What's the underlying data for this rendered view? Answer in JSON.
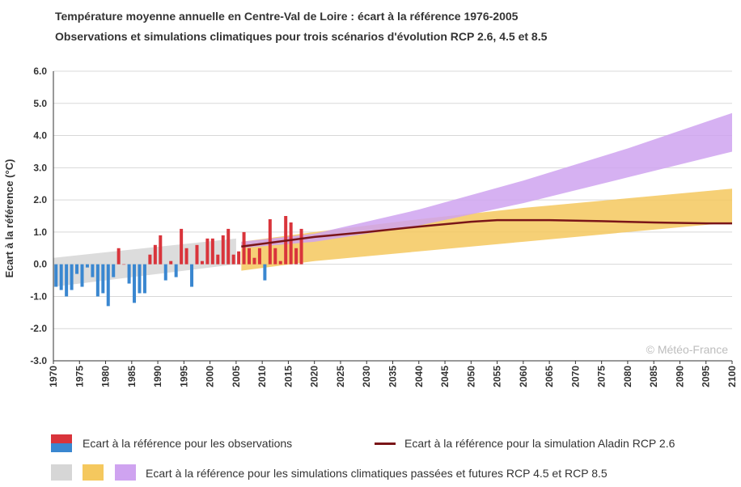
{
  "title": "Température moyenne annuelle en Centre-Val de Loire : écart à la référence 1976-2005",
  "subtitle": "Observations et simulations climatiques pour trois scénarios d'évolution RCP 2.6, 4.5 et 8.5",
  "watermark": "© Météo-France",
  "legend": {
    "observations": "Ecart à la référence pour les observations",
    "aladin": "Ecart à la référence pour la simulation Aladin RCP 2.6",
    "simulations": "Ecart à la référence pour les simulations climatiques passées et futures RCP 4.5 et RCP 8.5"
  },
  "colors": {
    "positive": "#d9343b",
    "negative": "#3a87d0",
    "grey_band": "#d6d6d6",
    "rcp45_band": "#f5c85e",
    "rcp85_band": "#cfa3f0",
    "aladin_line": "#7a1518",
    "grid": "#d8d8d8"
  },
  "chart_data": {
    "type": "bar",
    "ylabel": "Ecart à la référence (°C)",
    "xlabel": "",
    "xlim": [
      1970,
      2100
    ],
    "ylim": [
      -3.0,
      6.0
    ],
    "yticks": [
      "6.0",
      "5.0",
      "4.0",
      "3.0",
      "2.0",
      "1.0",
      "0.0",
      "-1.0",
      "-2.0",
      "-3.0"
    ],
    "ytick_values": [
      6,
      5,
      4,
      3,
      2,
      1,
      0,
      -1,
      -2,
      -3
    ],
    "xticks": [
      "1970",
      "1975",
      "1980",
      "1985",
      "1990",
      "1995",
      "2000",
      "2005",
      "2010",
      "2015",
      "2020",
      "2025",
      "2030",
      "2035",
      "2040",
      "2045",
      "2050",
      "2055",
      "2060",
      "2065",
      "2070",
      "2075",
      "2080",
      "2085",
      "2090",
      "2095",
      "2100"
    ],
    "observations": {
      "years": [
        1970,
        1971,
        1972,
        1973,
        1974,
        1975,
        1976,
        1977,
        1978,
        1979,
        1980,
        1981,
        1982,
        1983,
        1984,
        1985,
        1986,
        1987,
        1988,
        1989,
        1990,
        1991,
        1992,
        1993,
        1994,
        1995,
        1996,
        1997,
        1998,
        1999,
        2000,
        2001,
        2002,
        2003,
        2004,
        2005,
        2006,
        2007,
        2008,
        2009,
        2010,
        2011,
        2012,
        2013,
        2014,
        2015,
        2016,
        2017
      ],
      "values": [
        -0.7,
        -0.8,
        -1.0,
        -0.8,
        -0.3,
        -0.7,
        -0.1,
        -0.4,
        -1.0,
        -0.9,
        -1.3,
        -0.4,
        0.5,
        0.0,
        -0.6,
        -1.2,
        -0.9,
        -0.9,
        0.3,
        0.6,
        0.9,
        -0.5,
        0.1,
        -0.4,
        1.1,
        0.5,
        -0.7,
        0.6,
        0.1,
        0.8,
        0.8,
        0.3,
        0.9,
        1.1,
        0.3,
        0.4,
        1.0,
        0.5,
        0.2,
        0.5,
        -0.5,
        1.4,
        0.5,
        0.1,
        1.5,
        1.3,
        0.5,
        1.1
      ]
    },
    "bands": [
      {
        "name": "grey",
        "x": [
          1970,
          2005
        ],
        "lower": [
          -0.7,
          0.0
        ],
        "upper": [
          0.2,
          0.8
        ]
      },
      {
        "name": "rcp45",
        "x": [
          2006,
          2020,
          2040,
          2060,
          2080,
          2100
        ],
        "lower": [
          -0.2,
          0.1,
          0.4,
          0.7,
          1.0,
          1.3
        ],
        "upper": [
          0.7,
          1.0,
          1.4,
          1.75,
          2.05,
          2.35
        ]
      },
      {
        "name": "rcp85",
        "x": [
          2006,
          2020,
          2040,
          2060,
          2080,
          2100
        ],
        "lower": [
          0.5,
          0.7,
          1.2,
          1.9,
          2.7,
          3.5
        ],
        "upper": [
          0.7,
          0.95,
          1.7,
          2.6,
          3.6,
          4.7
        ]
      }
    ],
    "aladin_line": {
      "x": [
        2006,
        2020,
        2030,
        2040,
        2050,
        2055,
        2065,
        2075,
        2085,
        2095,
        2100
      ],
      "y": [
        0.55,
        0.85,
        1.0,
        1.17,
        1.32,
        1.37,
        1.37,
        1.34,
        1.3,
        1.27,
        1.27
      ]
    }
  }
}
